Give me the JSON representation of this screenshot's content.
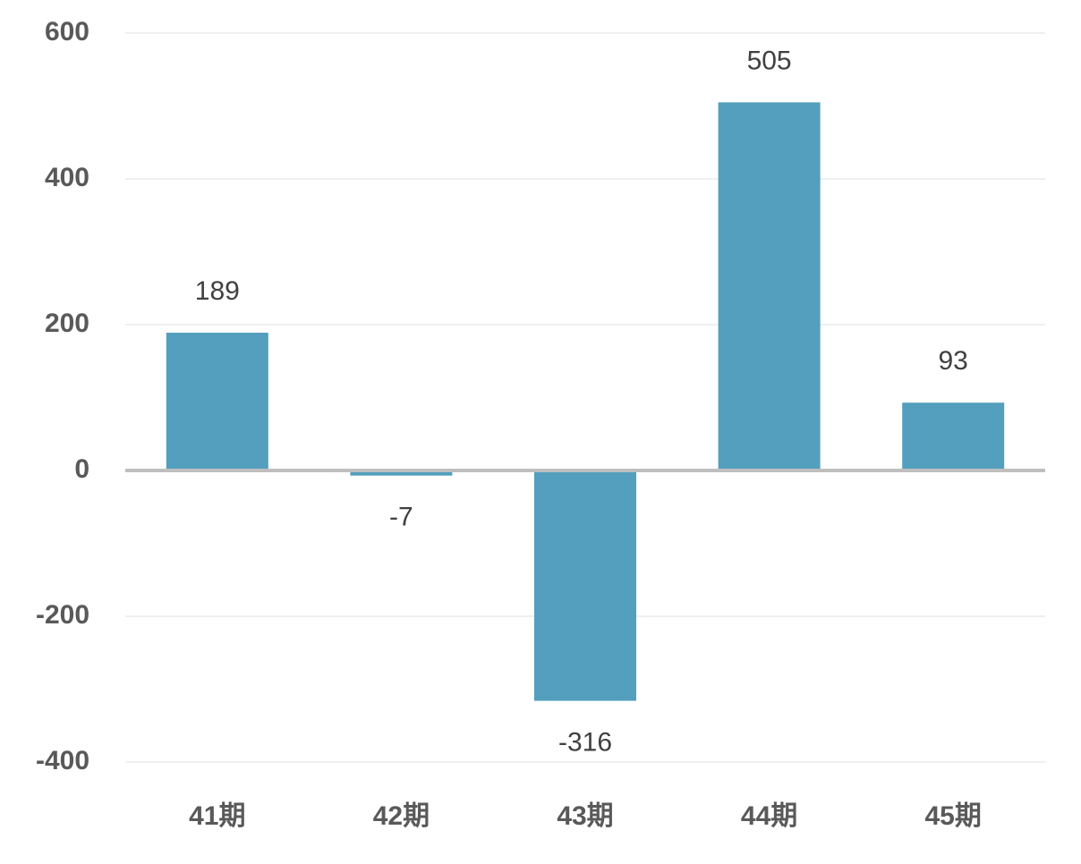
{
  "chart_data": {
    "type": "bar",
    "categories": [
      "41期",
      "42期",
      "43期",
      "44期",
      "45期"
    ],
    "values": [
      189,
      -7,
      -316,
      505,
      93
    ],
    "color": "#539fbd",
    "ylim": [
      -400,
      600
    ],
    "yticks": [
      -400,
      -200,
      0,
      200,
      400,
      600
    ],
    "grid": true
  }
}
